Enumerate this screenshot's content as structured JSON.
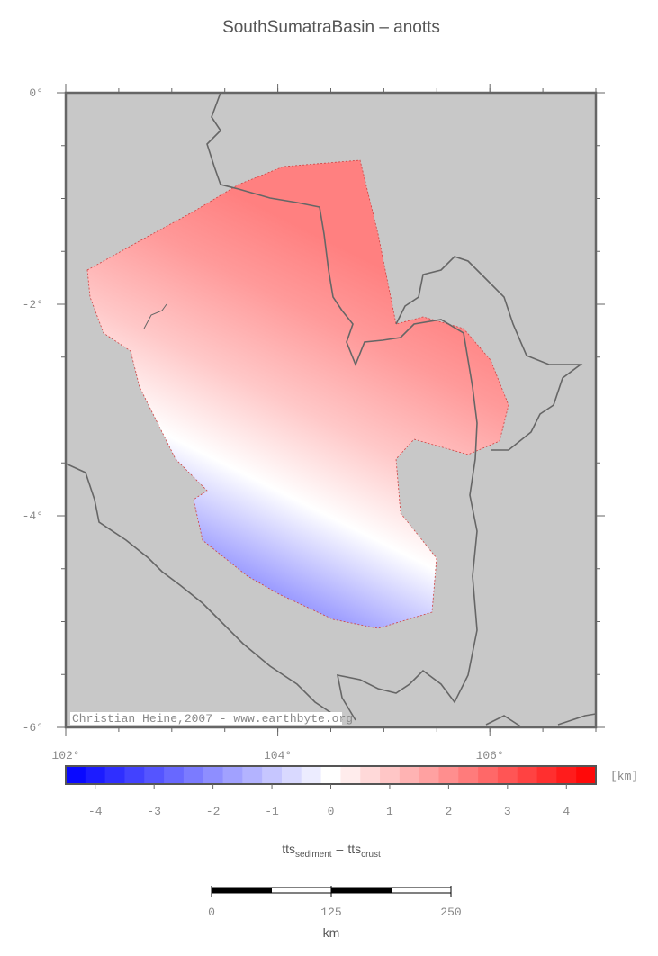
{
  "title": "SouthSumatraBasin – anotts",
  "map": {
    "lonlim": [
      102,
      107
    ],
    "latlim": [
      -6,
      0
    ],
    "lon_ticks": [
      {
        "value": 102,
        "label": "102°"
      },
      {
        "value": 104,
        "label": "104°"
      },
      {
        "value": 106,
        "label": "106°"
      }
    ],
    "lat_ticks": [
      {
        "value": 0,
        "label": "0°"
      },
      {
        "value": -2,
        "label": "-2°"
      },
      {
        "value": -4,
        "label": "-4°"
      },
      {
        "value": -6,
        "label": "-6°"
      }
    ],
    "credit": "Christian Heine,2007 - www.earthbyte.org"
  },
  "colorbar": {
    "lim": [
      -4.5,
      4.5
    ],
    "ticks": [
      -4,
      -3,
      -2,
      -1,
      0,
      1,
      2,
      3,
      4
    ],
    "unit": "[km]",
    "label_parts": [
      "tts",
      "sediment",
      "–",
      "tts",
      "crust"
    ]
  },
  "scalebar": {
    "ticks": [
      0,
      125,
      250
    ],
    "unit": "km"
  }
}
